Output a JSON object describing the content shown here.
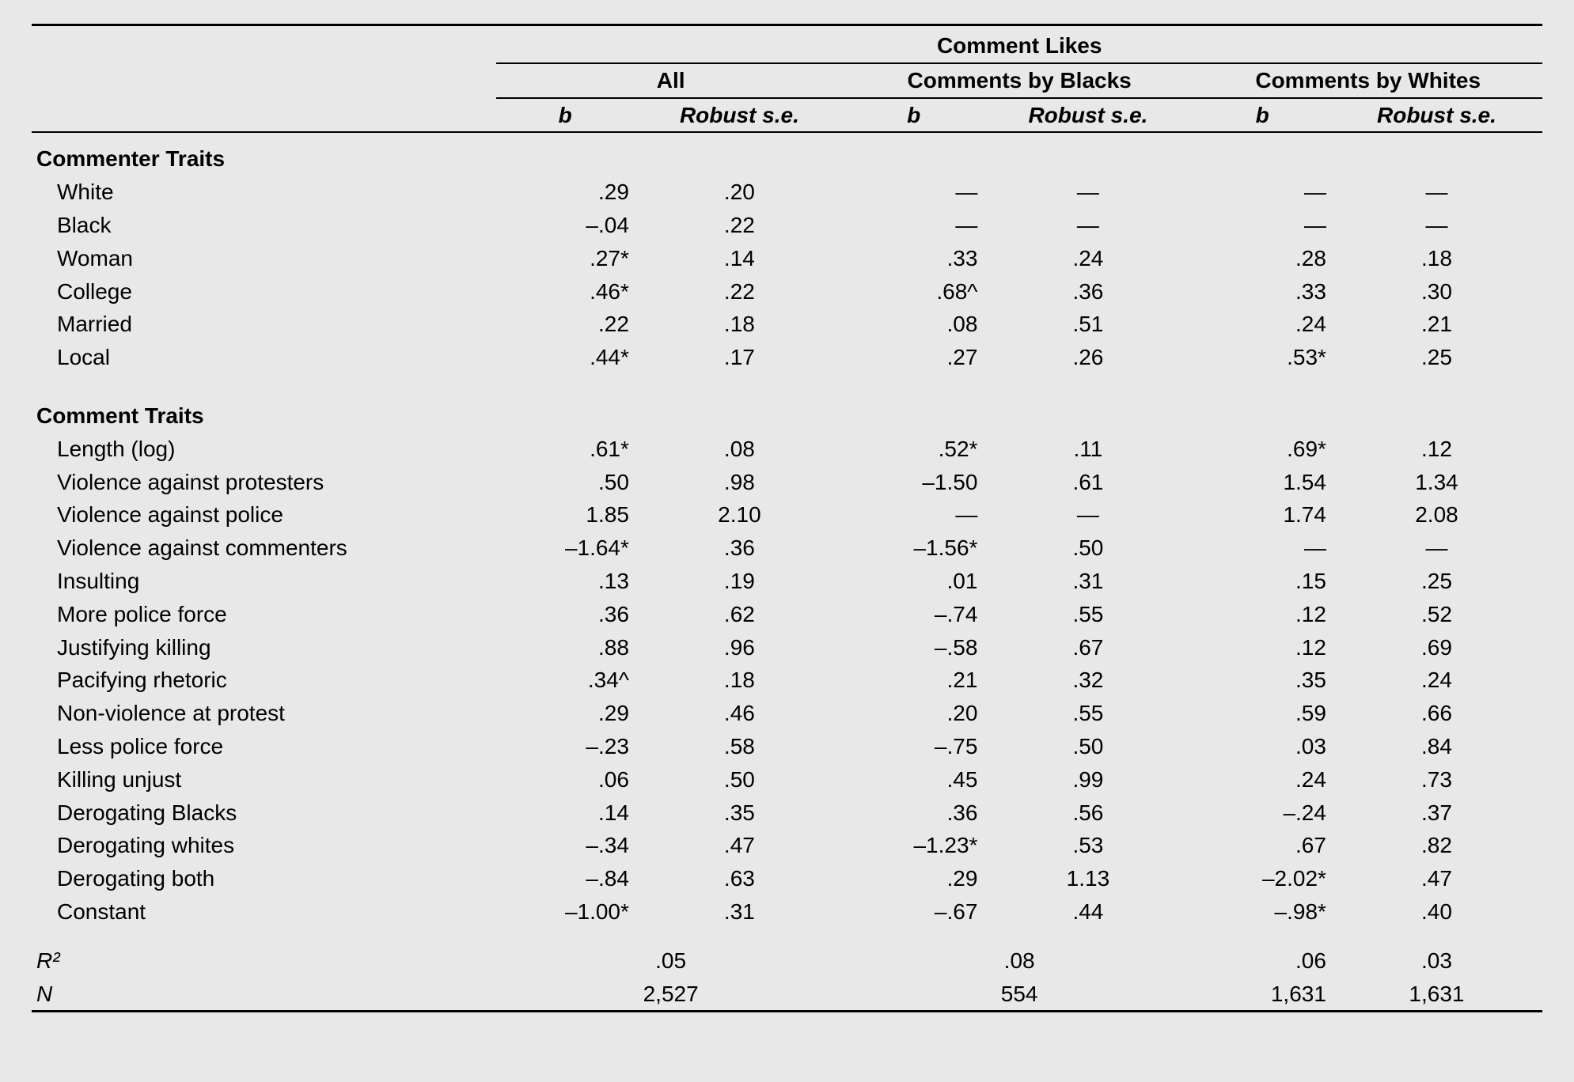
{
  "header": {
    "super": "Comment Likes",
    "groups": [
      "All",
      "Comments by Blacks",
      "Comments by Whites"
    ],
    "sub": [
      "b",
      "Robust s.e."
    ]
  },
  "sections": [
    {
      "title": "Commenter Traits",
      "rows": [
        {
          "label": "White",
          "c": [
            ".29",
            ".20",
            "—",
            "—",
            "—",
            "—"
          ]
        },
        {
          "label": "Black",
          "c": [
            "–.04",
            ".22",
            "—",
            "—",
            "—",
            "—"
          ]
        },
        {
          "label": "Woman",
          "c": [
            ".27*",
            ".14",
            ".33",
            ".24",
            ".28",
            ".18"
          ]
        },
        {
          "label": "College",
          "c": [
            ".46*",
            ".22",
            ".68^",
            ".36",
            ".33",
            ".30"
          ]
        },
        {
          "label": "Married",
          "c": [
            ".22",
            ".18",
            ".08",
            ".51",
            ".24",
            ".21"
          ]
        },
        {
          "label": "Local",
          "c": [
            ".44*",
            ".17",
            ".27",
            ".26",
            ".53*",
            ".25"
          ]
        }
      ]
    },
    {
      "title": "Comment Traits",
      "rows": [
        {
          "label": "Length (log)",
          "c": [
            ".61*",
            ".08",
            ".52*",
            ".11",
            ".69*",
            ".12"
          ]
        },
        {
          "label": "Violence against protesters",
          "c": [
            ".50",
            ".98",
            "–1.50",
            ".61",
            "1.54",
            "1.34"
          ]
        },
        {
          "label": "Violence against police",
          "c": [
            "1.85",
            "2.10",
            "—",
            "—",
            "1.74",
            "2.08"
          ]
        },
        {
          "label": "Violence against commenters",
          "c": [
            "–1.64*",
            ".36",
            "–1.56*",
            ".50",
            "—",
            "—"
          ]
        },
        {
          "label": "Insulting",
          "c": [
            ".13",
            ".19",
            ".01",
            ".31",
            ".15",
            ".25"
          ]
        },
        {
          "label": "More police force",
          "c": [
            ".36",
            ".62",
            "–.74",
            ".55",
            ".12",
            ".52"
          ]
        },
        {
          "label": "Justifying killing",
          "c": [
            ".88",
            ".96",
            "–.58",
            ".67",
            ".12",
            ".69"
          ]
        },
        {
          "label": "Pacifying rhetoric",
          "c": [
            ".34^",
            ".18",
            ".21",
            ".32",
            ".35",
            ".24"
          ]
        },
        {
          "label": "Non-violence at protest",
          "c": [
            ".29",
            ".46",
            ".20",
            ".55",
            ".59",
            ".66"
          ]
        },
        {
          "label": "Less police force",
          "c": [
            "–.23",
            ".58",
            "–.75",
            ".50",
            ".03",
            ".84"
          ]
        },
        {
          "label": "Killing unjust",
          "c": [
            ".06",
            ".50",
            ".45",
            ".99",
            ".24",
            ".73"
          ]
        },
        {
          "label": "Derogating Blacks",
          "c": [
            ".14",
            ".35",
            ".36",
            ".56",
            "–.24",
            ".37"
          ]
        },
        {
          "label": "Derogating whites",
          "c": [
            "–.34",
            ".47",
            "–1.23*",
            ".53",
            ".67",
            ".82"
          ]
        },
        {
          "label": "Derogating both",
          "c": [
            "–.84",
            ".63",
            ".29",
            "1.13",
            "–2.02*",
            ".47"
          ]
        },
        {
          "label": "Constant",
          "c": [
            "–1.00*",
            ".31",
            "–.67",
            ".44",
            "–.98*",
            ".40"
          ]
        }
      ]
    }
  ],
  "footer": {
    "r2": {
      "label": "R²",
      "all": ".05",
      "black": ".08",
      "white_b": ".06",
      "white_se": ".03"
    },
    "n": {
      "label": "N",
      "all": "2,527",
      "black": "554",
      "white_b": "1,631",
      "white_se": "1,631"
    }
  }
}
